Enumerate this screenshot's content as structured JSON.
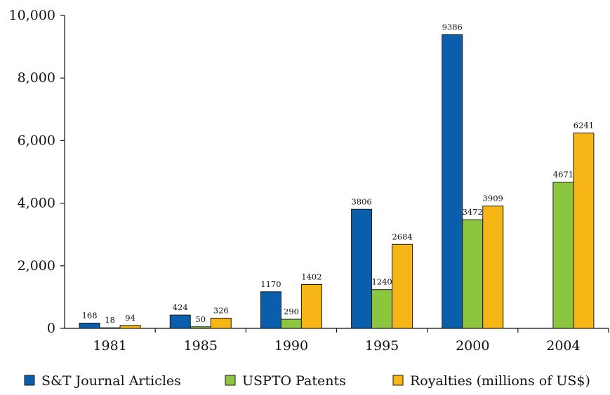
{
  "chart_data": {
    "type": "bar",
    "categories": [
      "1981",
      "1985",
      "1990",
      "1995",
      "2000",
      "2004"
    ],
    "series": [
      {
        "name": "S&T Journal Articles",
        "color": "#0a5eac",
        "values": [
          168,
          424,
          1170,
          3806,
          9386,
          null
        ]
      },
      {
        "name": "USPTO Patents",
        "color": "#8cc63f",
        "values": [
          18,
          50,
          290,
          1240,
          3472,
          4671
        ]
      },
      {
        "name": "Royalties (millions of US$)",
        "color": "#f8b616",
        "values": [
          94,
          326,
          1402,
          2684,
          3909,
          6241
        ]
      }
    ],
    "ylim": [
      0,
      10000
    ],
    "yticks": [
      0,
      2000,
      4000,
      6000,
      8000,
      10000
    ],
    "ytick_labels": [
      "0",
      "2,000",
      "4,000",
      "6,000",
      "8,000",
      "10,000"
    ],
    "grid": false,
    "legend_position": "bottom",
    "title": "",
    "xlabel": "",
    "ylabel": ""
  }
}
